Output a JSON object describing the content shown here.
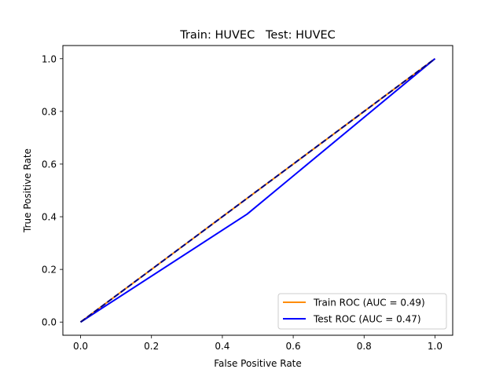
{
  "chart_data": {
    "type": "line",
    "title": "Train: HUVEC   Test: HUVEC",
    "xlabel": "False Positive Rate",
    "ylabel": "True Positive Rate",
    "xlim": [
      -0.05,
      1.05
    ],
    "ylim": [
      -0.05,
      1.05
    ],
    "xticks": [
      0.0,
      0.2,
      0.4,
      0.6,
      0.8,
      1.0
    ],
    "yticks": [
      0.0,
      0.2,
      0.4,
      0.6,
      0.8,
      1.0
    ],
    "xtick_labels": [
      "0.0",
      "0.2",
      "0.4",
      "0.6",
      "0.8",
      "1.0"
    ],
    "ytick_labels": [
      "0.0",
      "0.2",
      "0.4",
      "0.6",
      "0.8",
      "1.0"
    ],
    "grid": false,
    "legend_position": "lower-right",
    "series": [
      {
        "name": "Train ROC (AUC = 0.49)",
        "color": "#ff8c00",
        "style": "solid",
        "x": [
          0.0,
          1.0
        ],
        "y": [
          0.0,
          1.0
        ]
      },
      {
        "name": "Test ROC (AUC = 0.47)",
        "color": "#0000ff",
        "style": "solid",
        "x": [
          0.0,
          0.47,
          1.0
        ],
        "y": [
          0.0,
          0.41,
          1.0
        ]
      },
      {
        "color": "#000080",
        "style": "dashed",
        "x": [
          0.0,
          1.0
        ],
        "y": [
          0.0,
          1.0
        ]
      }
    ]
  }
}
